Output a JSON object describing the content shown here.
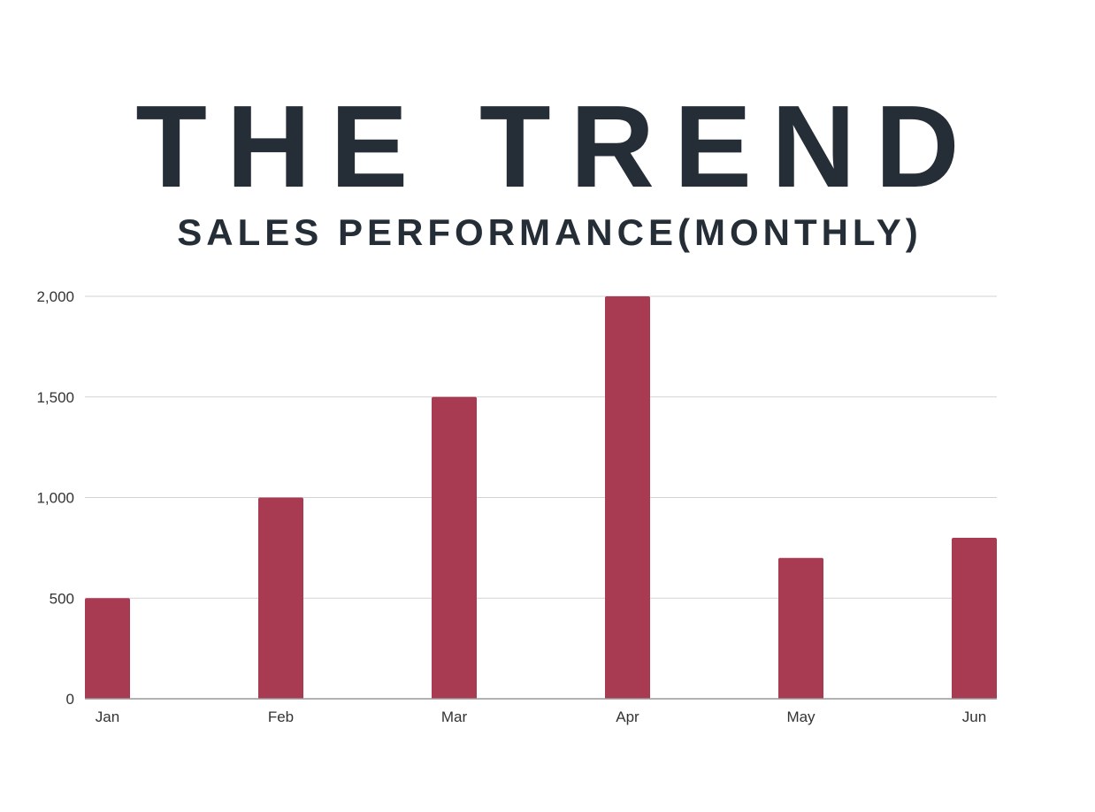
{
  "colors": {
    "title": "#252d37",
    "bar": "#a83a52",
    "grid": "#d3d3d3",
    "axis": "#999999",
    "tick_label": "#333333"
  },
  "chart_data": {
    "type": "bar",
    "title": "THE TREND",
    "subtitle": "SALES PERFORMANCE(MONTHLY)",
    "xlabel": "",
    "ylabel": "",
    "categories": [
      "Jan",
      "Feb",
      "Mar",
      "Apr",
      "May",
      "Jun"
    ],
    "values": [
      500,
      1000,
      1500,
      2000,
      700,
      800
    ],
    "ylim": [
      0,
      2000
    ],
    "yticks": [
      0,
      500,
      1000,
      1500,
      2000
    ],
    "ytick_labels": [
      "0",
      "500",
      "1,000",
      "1,500",
      "2,000"
    ],
    "grid": true,
    "legend": "none"
  }
}
